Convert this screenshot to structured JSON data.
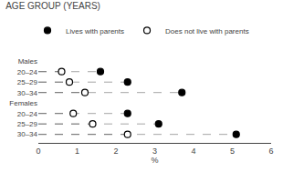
{
  "chart_data": {
    "type": "dot",
    "title": "AGE GROUP (YEARS)",
    "categories": [
      "Males",
      "20–24",
      "25–29",
      "30–34",
      "Females",
      "20–24",
      "25–29",
      "30–34"
    ],
    "series": [
      {
        "name": "Lives with parents",
        "color": "black",
        "marker": "filled",
        "line_style": "dashed",
        "values": [
          null,
          1.6,
          2.3,
          3.7,
          null,
          2.3,
          3.1,
          5.1
        ]
      },
      {
        "name": "Does not live with parents",
        "color": "black",
        "marker": "open",
        "line_style": "dashed",
        "values": [
          null,
          0.6,
          0.8,
          1.2,
          null,
          0.9,
          1.4,
          2.3
        ]
      }
    ],
    "xlabel": "%",
    "xlim": [
      0,
      6
    ],
    "xticks": [
      0,
      1,
      2,
      3,
      4,
      5,
      6
    ],
    "grid": false,
    "legend": "top"
  }
}
